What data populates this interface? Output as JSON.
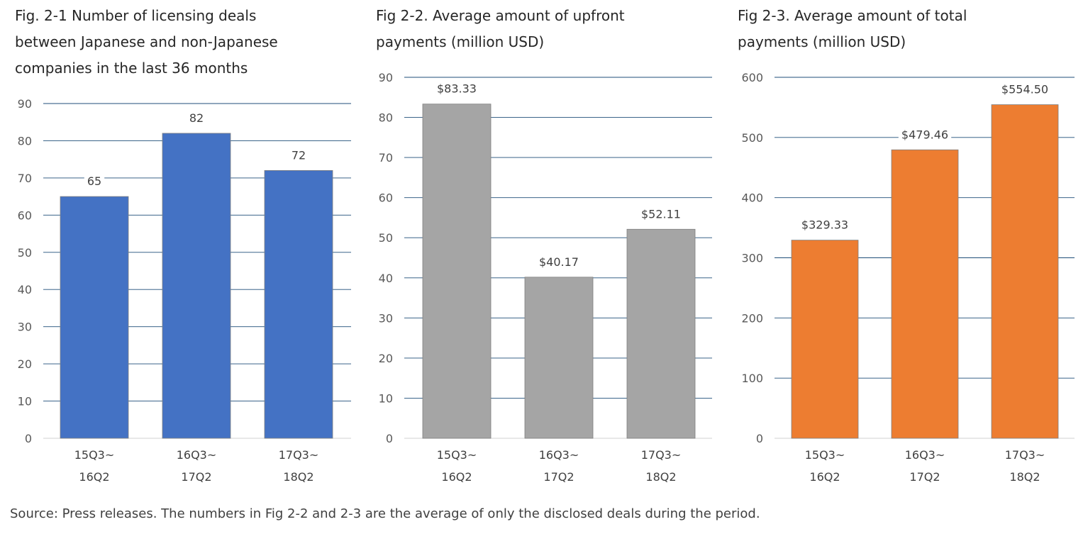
{
  "chart_data": [
    {
      "type": "bar",
      "title": "Fig. 2-1 Number of licensing deals\nbetween Japanese and non-Japanese\ncompanies in the last 36 months",
      "categories": [
        [
          "15Q3~",
          "16Q2"
        ],
        [
          "16Q3~",
          "17Q2"
        ],
        [
          "17Q3~",
          "18Q2"
        ]
      ],
      "values": [
        65,
        82,
        72
      ],
      "value_labels": [
        "65",
        "82",
        "72"
      ],
      "ylim": [
        0,
        90
      ],
      "yticks": [
        0,
        10,
        20,
        30,
        40,
        50,
        60,
        70,
        80,
        90
      ],
      "grid": true,
      "color": "#4472C4"
    },
    {
      "type": "bar",
      "title": "Fig 2-2. Average amount of upfront\npayments (million USD)",
      "categories": [
        [
          "15Q3~",
          "16Q2"
        ],
        [
          "16Q3~",
          "17Q2"
        ],
        [
          "17Q3~",
          "18Q2"
        ]
      ],
      "values": [
        83.33,
        40.17,
        52.11
      ],
      "value_labels": [
        "$83.33",
        "$40.17",
        "$52.11"
      ],
      "ylim": [
        0,
        90
      ],
      "yticks": [
        0,
        10,
        20,
        30,
        40,
        50,
        60,
        70,
        80,
        90
      ],
      "grid": true,
      "color": "#A5A5A5"
    },
    {
      "type": "bar",
      "title": "Fig 2-3. Average amount of total\npayments (million USD)",
      "categories": [
        [
          "15Q3~",
          "16Q2"
        ],
        [
          "16Q3~",
          "17Q2"
        ],
        [
          "17Q3~",
          "18Q2"
        ]
      ],
      "values": [
        329.33,
        479.46,
        554.5
      ],
      "value_labels": [
        "$329.33",
        "$479.46",
        "$554.50"
      ],
      "ylim": [
        0,
        600
      ],
      "yticks": [
        0,
        100,
        200,
        300,
        400,
        500,
        600
      ],
      "grid": true,
      "color": "#ED7D31"
    }
  ],
  "source_note": "Source: Press releases. The numbers in Fig 2-2 and 2-3 are the average of only the disclosed deals during the period."
}
